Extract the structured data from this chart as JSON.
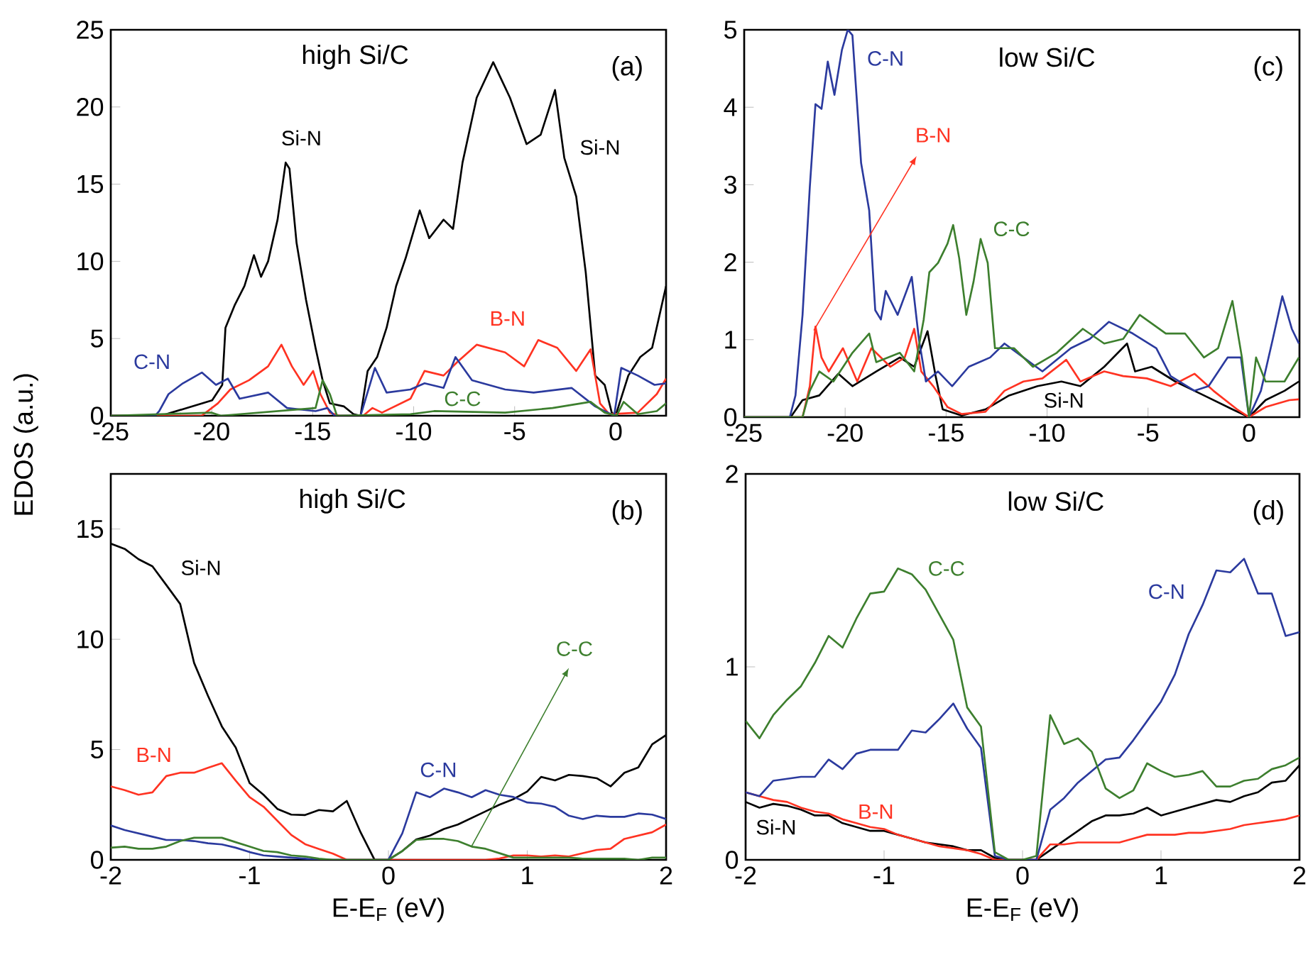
{
  "chart_data": [
    {
      "type": "line",
      "title": "high Si/C",
      "ylabel": "EDOS (a.u.)",
      "xlim": [
        -25,
        2.5
      ],
      "ylim": [
        0,
        25
      ],
      "xticks": [
        -25,
        -20,
        -15,
        -10,
        -5,
        0
      ],
      "yticks": [
        0,
        5,
        10,
        15,
        20,
        25
      ],
      "annotations": [
        "(a)",
        "Si-N"
      ],
      "series": [
        {
          "name": "Si-N",
          "color": "#000000",
          "x": [
            -25,
            -22.5,
            -22.0,
            -19.98,
            -19.48,
            -19.32,
            -18.85,
            -18.38,
            -17.91,
            -17.56,
            -17.21,
            -16.74,
            -16.34,
            -16.15,
            -15.8,
            -15.33,
            -14.86,
            -14.51,
            -14.15,
            -13.45,
            -12.98,
            -12.63,
            -12.28,
            -11.81,
            -11.34,
            -10.87,
            -10.4,
            -9.7,
            -9.23,
            -8.52,
            -8.05,
            -7.58,
            -6.88,
            -6.06,
            -5.7,
            -5.23,
            -4.41,
            -3.71,
            -3.0,
            -2.54,
            -1.95,
            -1.48,
            -1.01,
            -0.54,
            -0.19,
            0,
            0.63,
            1.22,
            1.81,
            2.5
          ],
          "values": [
            0,
            0,
            0.2,
            1,
            2,
            5.7,
            7.2,
            8.4,
            10.4,
            9,
            10,
            12.7,
            16.4,
            16,
            11.2,
            7.5,
            4.4,
            2.3,
            0.8,
            0.6,
            0.1,
            0,
            2.9,
            3.8,
            5.7,
            8.4,
            10.2,
            13.3,
            11.5,
            12.7,
            12.1,
            16.4,
            20.6,
            22.9,
            21.9,
            20.6,
            17.6,
            18.2,
            21.1,
            16.7,
            14.2,
            9.3,
            2.6,
            2.0,
            0.2,
            0,
            2.6,
            3.8,
            4.4,
            8.4
          ]
        },
        {
          "name": "B-N",
          "color": "#ff3322",
          "x": [
            -25,
            -20.5,
            -19.7,
            -19.08,
            -18.15,
            -17.21,
            -16.55,
            -16.03,
            -15.45,
            -14.98,
            -14.62,
            -14.15,
            -13.69,
            -12.5,
            -12.04,
            -11.57,
            -10.16,
            -9.46,
            -8.52,
            -7.82,
            -6.88,
            -5.47,
            -4.53,
            -3.83,
            -2.89,
            -1.95,
            -1.24,
            -0.77,
            -0.31,
            1.1,
            2.04,
            2.5
          ],
          "values": [
            0,
            0,
            0.8,
            1.7,
            2.3,
            3.2,
            4.6,
            3.2,
            2.0,
            2.9,
            1.4,
            0.2,
            0,
            0,
            0.5,
            0.2,
            1.1,
            2.9,
            2.6,
            3.5,
            4.6,
            4.1,
            3.2,
            4.9,
            4.4,
            2.9,
            4.3,
            0.8,
            0.1,
            0.2,
            1.4,
            2.4
          ]
        },
        {
          "name": "C-N",
          "color": "#2b3a9e",
          "x": [
            -25,
            -22.8,
            -22.6,
            -22.14,
            -21.43,
            -20.49,
            -19.79,
            -19.2,
            -18.62,
            -17.21,
            -16.27,
            -14.86,
            -14.27,
            -13.92,
            -12.63,
            -11.92,
            -11.34,
            -10.16,
            -9.46,
            -8.52,
            -7.93,
            -7.11,
            -5.47,
            -4.06,
            -2.18,
            -1.01,
            -0.07,
            0.28,
            1.1,
            1.93,
            2.5
          ],
          "values": [
            0,
            0,
            0.3,
            1.4,
            2.1,
            2.8,
            2.0,
            2.4,
            1.1,
            1.5,
            0.5,
            0.3,
            0.5,
            0,
            0,
            3.1,
            1.5,
            1.7,
            2.1,
            1.8,
            3.8,
            2.3,
            1.7,
            1.5,
            1.8,
            0.6,
            0,
            3.1,
            2.6,
            2.0,
            2.1
          ]
        },
        {
          "name": "C-C",
          "color": "#3d7f2e",
          "x": [
            -25,
            -20.02,
            -19.55,
            -14.86,
            -14.51,
            -14.15,
            -13.8,
            -10.16,
            -8.99,
            -5.47,
            -3.12,
            -1.24,
            -0.54,
            0.05,
            0.4,
            1.1,
            2.04,
            2.5
          ],
          "values": [
            0,
            0.2,
            0,
            0.5,
            2.3,
            1.4,
            0,
            0.1,
            0.3,
            0.2,
            0.5,
            0.9,
            0.2,
            0,
            0.9,
            0.1,
            0.3,
            0.8
          ]
        }
      ]
    },
    {
      "type": "line",
      "title": "low Si/C",
      "xlim": [
        -25,
        2.5
      ],
      "ylim": [
        0,
        5
      ],
      "xticks": [
        -25,
        -20,
        -15,
        -10,
        -5,
        0
      ],
      "yticks": [
        0,
        1,
        2,
        3,
        4,
        5
      ],
      "annotations": [
        "(c)"
      ],
      "series": [
        {
          "name": "Si-N",
          "color": "#000000",
          "x": [
            -25,
            -22.7,
            -22.11,
            -21.28,
            -20.34,
            -19.64,
            -18.46,
            -17.29,
            -16.58,
            -15.92,
            -15.52,
            -15.17,
            -14.23,
            -13.05,
            -11.88,
            -10.47,
            -9.29,
            -8.35,
            -7.17,
            -6.04,
            -5.64,
            -4.82,
            -3.65,
            -2.23,
            -0.82,
            0,
            0.82,
            1.76,
            2.47
          ],
          "values": [
            0,
            0,
            0.22,
            0.28,
            0.56,
            0.4,
            0.59,
            0.77,
            0.65,
            1.11,
            0.53,
            0.1,
            0.02,
            0.1,
            0.28,
            0.4,
            0.46,
            0.4,
            0.65,
            0.95,
            0.59,
            0.65,
            0.46,
            0.28,
            0.1,
            0,
            0.22,
            0.34,
            0.46
          ]
        },
        {
          "name": "B-N",
          "color": "#ff3322",
          "x": [
            -25,
            -22.11,
            -21.75,
            -21.47,
            -21.17,
            -20.81,
            -20.11,
            -19.4,
            -18.7,
            -17.76,
            -17.05,
            -16.58,
            -16.23,
            -15.64,
            -14.93,
            -14.23,
            -13.05,
            -12.11,
            -11.17,
            -10.23,
            -9.05,
            -8.35,
            -7.17,
            -6.23,
            -5.06,
            -3.88,
            -2.7,
            -1.76,
            -0.59,
            0,
            0.82,
            2.0,
            2.47
          ],
          "values": [
            0,
            0,
            0.4,
            1.17,
            0.77,
            0.59,
            0.89,
            0.46,
            0.89,
            0.65,
            0.77,
            1.14,
            0.59,
            0.4,
            0.13,
            0.04,
            0.07,
            0.34,
            0.46,
            0.5,
            0.74,
            0.46,
            0.59,
            0.53,
            0.5,
            0.4,
            0.56,
            0.34,
            0.1,
            0,
            0.13,
            0.22,
            0.23
          ]
        },
        {
          "name": "C-N",
          "color": "#2b3a9e",
          "x": [
            -25,
            -22.74,
            -22.46,
            -22.11,
            -21.75,
            -21.47,
            -21.17,
            -20.86,
            -20.53,
            -20.16,
            -19.87,
            -19.64,
            -19.21,
            -18.81,
            -18.51,
            -18.23,
            -17.99,
            -17.4,
            -16.7,
            -16.35,
            -16.0,
            -15.4,
            -14.7,
            -13.88,
            -12.82,
            -12.11,
            -11.17,
            -10.23,
            -8.82,
            -7.88,
            -6.94,
            -5.76,
            -4.59,
            -3.88,
            -2.7,
            -2.0,
            -1.06,
            -0.4,
            0,
            0.59,
            1.18,
            1.65,
            2.12,
            2.47
          ],
          "values": [
            0,
            0,
            0.28,
            1.32,
            2.97,
            4.04,
            3.98,
            4.59,
            4.16,
            4.74,
            5.0,
            4.93,
            3.28,
            2.67,
            1.38,
            1.26,
            1.63,
            1.32,
            1.81,
            1.01,
            0.46,
            0.59,
            0.4,
            0.65,
            0.77,
            0.95,
            0.77,
            0.59,
            0.89,
            1.01,
            1.23,
            1.08,
            0.89,
            0.53,
            0.34,
            0.4,
            0.77,
            0.77,
            0,
            0.34,
            1.01,
            1.56,
            1.14,
            0.95
          ]
        },
        {
          "name": "C-C",
          "color": "#3d7f2e",
          "x": [
            -25,
            -22.11,
            -21.75,
            -21.28,
            -20.58,
            -19.64,
            -18.81,
            -18.46,
            -17.29,
            -16.58,
            -16.11,
            -15.83,
            -15.4,
            -14.93,
            -14.65,
            -14.35,
            -14.0,
            -13.64,
            -13.29,
            -12.94,
            -12.58,
            -11.64,
            -10.7,
            -9.52,
            -8.23,
            -7.17,
            -6.23,
            -5.41,
            -4.12,
            -3.17,
            -2.23,
            -1.53,
            -0.82,
            -0.35,
            0,
            0.35,
            0.82,
            1.76,
            2.47
          ],
          "values": [
            0,
            0,
            0.34,
            0.59,
            0.46,
            0.83,
            1.08,
            0.71,
            0.83,
            0.59,
            1.26,
            1.87,
            1.99,
            2.24,
            2.48,
            2.05,
            1.32,
            1.75,
            2.3,
            1.99,
            0.89,
            0.89,
            0.65,
            0.83,
            1.14,
            0.95,
            1.01,
            1.32,
            1.08,
            1.08,
            0.77,
            0.89,
            1.5,
            0.77,
            0,
            0.77,
            0.46,
            0.46,
            0.77
          ]
        }
      ]
    },
    {
      "type": "line",
      "title": "high Si/C",
      "xlabel": "E-E$_{F}$ (eV)",
      "xlim": [
        -2,
        2
      ],
      "ylim": [
        0,
        17.5
      ],
      "xticks": [
        -2,
        -1,
        0,
        1,
        2
      ],
      "yticks": [
        0,
        5,
        10,
        15
      ],
      "annotations": [
        "(b)"
      ],
      "x": [
        -2,
        -1.9,
        -1.8,
        -1.7,
        -1.6,
        -1.5,
        -1.4,
        -1.3,
        -1.2,
        -1.1,
        -1.0,
        -0.9,
        -0.8,
        -0.7,
        -0.6,
        -0.5,
        -0.4,
        -0.3,
        -0.2,
        -0.1,
        0,
        0.1,
        0.2,
        0.3,
        0.4,
        0.5,
        0.6,
        0.7,
        0.8,
        0.9,
        1.0,
        1.1,
        1.2,
        1.3,
        1.4,
        1.5,
        1.6,
        1.7,
        1.8,
        1.9,
        2.0
      ],
      "series": [
        {
          "name": "Si-N",
          "color": "#000000",
          "values": [
            14.34,
            14.1,
            13.63,
            13.31,
            12.46,
            11.6,
            8.93,
            7.44,
            6.05,
            5.09,
            3.48,
            2.95,
            2.31,
            2.05,
            2.03,
            2.26,
            2.2,
            2.67,
            1.24,
            0,
            0,
            0.4,
            0.92,
            1.1,
            1.4,
            1.6,
            1.9,
            2.2,
            2.5,
            2.75,
            3.1,
            3.76,
            3.6,
            3.85,
            3.8,
            3.7,
            3.33,
            3.95,
            4.19,
            5.24,
            5.66
          ]
        },
        {
          "name": "B-N",
          "color": "#ff3322",
          "values": [
            3.33,
            3.16,
            2.95,
            3.06,
            3.8,
            3.95,
            3.95,
            4.17,
            4.38,
            3.59,
            2.84,
            2.41,
            1.77,
            1.13,
            0.71,
            0.49,
            0.28,
            0,
            0,
            0,
            0,
            0,
            0,
            0,
            0,
            0,
            0,
            0,
            0.06,
            0.2,
            0.2,
            0.15,
            0.2,
            0.15,
            0.3,
            0.45,
            0.5,
            0.95,
            1.1,
            1.25,
            1.6
          ]
        },
        {
          "name": "C-N",
          "color": "#2b3a9e",
          "values": [
            1.56,
            1.35,
            1.2,
            1.05,
            0.9,
            0.9,
            0.85,
            0.75,
            0.7,
            0.55,
            0.35,
            0.2,
            0.15,
            0.1,
            0.05,
            0,
            0,
            0,
            0,
            0,
            0,
            1.2,
            3.06,
            2.84,
            3.23,
            3.06,
            2.84,
            3.16,
            2.95,
            2.85,
            2.6,
            2.55,
            2.4,
            2.0,
            1.85,
            2.0,
            1.95,
            1.95,
            2.1,
            2.05,
            1.85
          ]
        },
        {
          "name": "C-C",
          "color": "#3d7f2e",
          "values": [
            0.55,
            0.6,
            0.5,
            0.5,
            0.6,
            0.85,
            1.0,
            1.0,
            1.0,
            0.8,
            0.6,
            0.4,
            0.35,
            0.2,
            0.15,
            0.05,
            0,
            0,
            0,
            0,
            0,
            0.4,
            0.9,
            0.95,
            0.95,
            0.85,
            0.6,
            0.5,
            0.3,
            0.1,
            0.1,
            0.1,
            0.1,
            0.1,
            0.05,
            0.05,
            0.05,
            0.05,
            0,
            0.1,
            0.1
          ]
        }
      ]
    },
    {
      "type": "line",
      "title": "low Si/C",
      "xlabel": "E-E$_{F}$ (eV)",
      "xlim": [
        -2,
        2
      ],
      "ylim": [
        0,
        2
      ],
      "xticks": [
        -2,
        -1,
        0,
        1,
        2
      ],
      "yticks": [
        0,
        1,
        2
      ],
      "annotations": [
        "(d)"
      ],
      "x": [
        -2,
        -1.9,
        -1.8,
        -1.7,
        -1.6,
        -1.5,
        -1.4,
        -1.3,
        -1.2,
        -1.1,
        -1.0,
        -0.9,
        -0.8,
        -0.7,
        -0.6,
        -0.5,
        -0.4,
        -0.3,
        -0.2,
        -0.1,
        0,
        0.1,
        0.2,
        0.3,
        0.4,
        0.5,
        0.6,
        0.7,
        0.8,
        0.9,
        1.0,
        1.1,
        1.2,
        1.3,
        1.4,
        1.5,
        1.6,
        1.7,
        1.8,
        1.9,
        2.0
      ],
      "series": [
        {
          "name": "Si-N",
          "color": "#000000",
          "values": [
            0.3,
            0.27,
            0.29,
            0.28,
            0.26,
            0.23,
            0.23,
            0.19,
            0.17,
            0.15,
            0.15,
            0.13,
            0.11,
            0.09,
            0.08,
            0.07,
            0.05,
            0.05,
            0.01,
            0,
            0,
            0,
            0.05,
            0.1,
            0.15,
            0.2,
            0.23,
            0.23,
            0.24,
            0.27,
            0.23,
            0.25,
            0.27,
            0.29,
            0.31,
            0.3,
            0.33,
            0.35,
            0.4,
            0.41,
            0.49
          ]
        },
        {
          "name": "B-N",
          "color": "#ff3322",
          "values": [
            0.35,
            0.33,
            0.31,
            0.3,
            0.27,
            0.25,
            0.24,
            0.21,
            0.19,
            0.17,
            0.16,
            0.13,
            0.11,
            0.09,
            0.07,
            0.06,
            0.05,
            0.03,
            0,
            0,
            0,
            0,
            0.08,
            0.08,
            0.09,
            0.09,
            0.09,
            0.09,
            0.11,
            0.13,
            0.13,
            0.13,
            0.14,
            0.14,
            0.15,
            0.16,
            0.18,
            0.19,
            0.2,
            0.21,
            0.23
          ]
        },
        {
          "name": "C-N",
          "color": "#2b3a9e",
          "values": [
            0.35,
            0.33,
            0.41,
            0.42,
            0.43,
            0.43,
            0.52,
            0.47,
            0.55,
            0.57,
            0.57,
            0.57,
            0.67,
            0.66,
            0.73,
            0.81,
            0.68,
            0.58,
            0.02,
            0,
            0,
            0,
            0.26,
            0.32,
            0.4,
            0.46,
            0.52,
            0.53,
            0.62,
            0.72,
            0.82,
            0.96,
            1.17,
            1.32,
            1.5,
            1.49,
            1.56,
            1.38,
            1.38,
            1.16,
            1.18
          ]
        },
        {
          "name": "C-C",
          "color": "#3d7f2e",
          "values": [
            0.72,
            0.63,
            0.75,
            0.83,
            0.9,
            1.02,
            1.16,
            1.1,
            1.25,
            1.38,
            1.39,
            1.51,
            1.48,
            1.4,
            1.27,
            1.14,
            0.79,
            0.69,
            0.04,
            0,
            0,
            0.02,
            0.75,
            0.6,
            0.63,
            0.56,
            0.37,
            0.32,
            0.36,
            0.5,
            0.46,
            0.43,
            0.44,
            0.46,
            0.38,
            0.38,
            0.41,
            0.42,
            0.47,
            0.49,
            0.53
          ]
        }
      ]
    }
  ]
}
